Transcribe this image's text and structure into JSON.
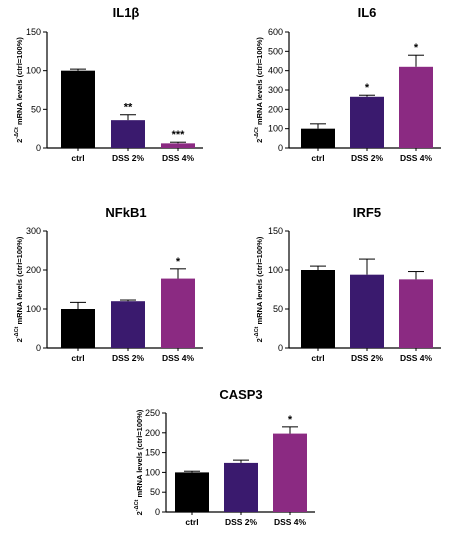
{
  "colors": {
    "ctrl": "#000000",
    "dss2": "#3a1a6e",
    "dss4": "#8b2a82"
  },
  "chart_data": [
    {
      "type": "bar",
      "title": "IL1β",
      "ylabel": "2^-ΔCt mRNA levels (ctrl=100%)",
      "ylabel_base": "2",
      "ylabel_sup": "-ΔCt",
      "ylabel_rest": "mRNA levels (ctrl=100%)",
      "categories": [
        "ctrl",
        "DSS 2%",
        "DSS 4%"
      ],
      "values": [
        100,
        36,
        6
      ],
      "errors": [
        2,
        7,
        1.5
      ],
      "significance": [
        "",
        "**",
        "***"
      ],
      "ylim": [
        0,
        150
      ],
      "yticks": [
        0,
        50,
        100,
        150
      ],
      "ytick_labels": [
        "0",
        "50",
        "100",
        "150"
      ]
    },
    {
      "type": "bar",
      "title": "IL6",
      "ylabel": "2^-ΔCt mRNA levels (ctrl=100%)",
      "ylabel_base": "2",
      "ylabel_sup": "-ΔCt",
      "ylabel_rest": "mRNA levels (ctrl=100%)",
      "categories": [
        "ctrl",
        "DSS 2%",
        "DSS 4%"
      ],
      "values": [
        100,
        265,
        420
      ],
      "errors": [
        25,
        8,
        60
      ],
      "significance": [
        "",
        "*",
        "*"
      ],
      "ylim": [
        0,
        600
      ],
      "yticks": [
        0,
        100,
        200,
        300,
        400,
        500,
        600
      ],
      "ytick_labels": [
        "0",
        "100",
        "200",
        "300",
        "400",
        "500",
        "600"
      ]
    },
    {
      "type": "bar",
      "title": "NFkB1",
      "ylabel": "2^-ΔCt mRNA levels (ctrl=100%)",
      "ylabel_base": "2",
      "ylabel_sup": "-ΔCt",
      "ylabel_rest": "mRNA levels (ctrl=100%)",
      "categories": [
        "ctrl",
        "DSS 2%",
        "DSS 4%"
      ],
      "values": [
        100,
        120,
        178
      ],
      "errors": [
        17,
        3,
        25
      ],
      "significance": [
        "",
        "",
        "*"
      ],
      "ylim": [
        0,
        300
      ],
      "yticks": [
        0,
        100,
        200,
        300
      ],
      "ytick_labels": [
        "0",
        "100",
        "200",
        "300"
      ]
    },
    {
      "type": "bar",
      "title": "IRF5",
      "ylabel": "2^-ΔCt mRNA levels (ctrl=100%)",
      "ylabel_base": "2",
      "ylabel_sup": "-ΔCt",
      "ylabel_rest": "mRNA levels (ctrl=100%)",
      "categories": [
        "ctrl",
        "DSS 2%",
        "DSS 4%"
      ],
      "values": [
        100,
        94,
        88
      ],
      "errors": [
        5,
        20,
        10
      ],
      "significance": [
        "",
        "",
        ""
      ],
      "ylim": [
        0,
        150
      ],
      "yticks": [
        0,
        50,
        100,
        150
      ],
      "ytick_labels": [
        "0",
        "50",
        "100",
        "150"
      ]
    },
    {
      "type": "bar",
      "title": "CASP3",
      "ylabel": "2^-ΔCt mRNA levels (ctrl=100%)",
      "ylabel_base": "2",
      "ylabel_sup": "-ΔCt",
      "ylabel_rest": "mRNA levels (ctrl=100%)",
      "categories": [
        "ctrl",
        "DSS 2%",
        "DSS 4%"
      ],
      "values": [
        100,
        124,
        198
      ],
      "errors": [
        3,
        7,
        17
      ],
      "significance": [
        "",
        "",
        "*"
      ],
      "ylim": [
        0,
        250
      ],
      "yticks": [
        0,
        50,
        100,
        150,
        200,
        250
      ],
      "ytick_labels": [
        "0",
        "50",
        "100",
        "150",
        "200",
        "250"
      ]
    }
  ]
}
